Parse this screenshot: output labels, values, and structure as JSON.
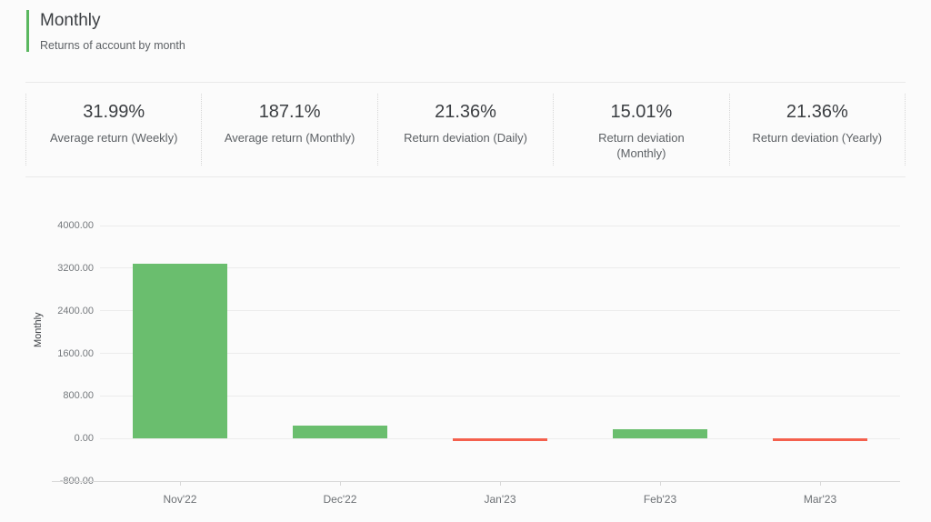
{
  "header": {
    "title": "Monthly",
    "subtitle": "Returns of account by month",
    "accent_color": "#5ab75f"
  },
  "stats": [
    {
      "value": "31.99%",
      "label": "Average return (Weekly)"
    },
    {
      "value": "187.1%",
      "label": "Average return (Monthly)"
    },
    {
      "value": "21.36%",
      "label": "Return deviation (Daily)"
    },
    {
      "value": "15.01%",
      "label": "Return deviation (Monthly)"
    },
    {
      "value": "21.36%",
      "label": "Return deviation (Yearly)"
    }
  ],
  "chart_data": {
    "type": "bar",
    "title": "",
    "categories": [
      "Nov'22",
      "Dec'22",
      "Jan'23",
      "Feb'23",
      "Mar'23"
    ],
    "values": [
      3285,
      250,
      -40,
      170,
      -40
    ],
    "xlabel": "",
    "ylabel": "Monthly",
    "ylim": [
      -800,
      4000
    ],
    "ytick_step": 800,
    "ytick_labels": [
      "4000.00",
      "3200.00",
      "2400.00",
      "1600.00",
      "800.00",
      "0.00",
      "-800.00"
    ],
    "grid": true,
    "legend_position": "none",
    "positive_color": "#6abe6e",
    "negative_color": "#f4604d"
  }
}
